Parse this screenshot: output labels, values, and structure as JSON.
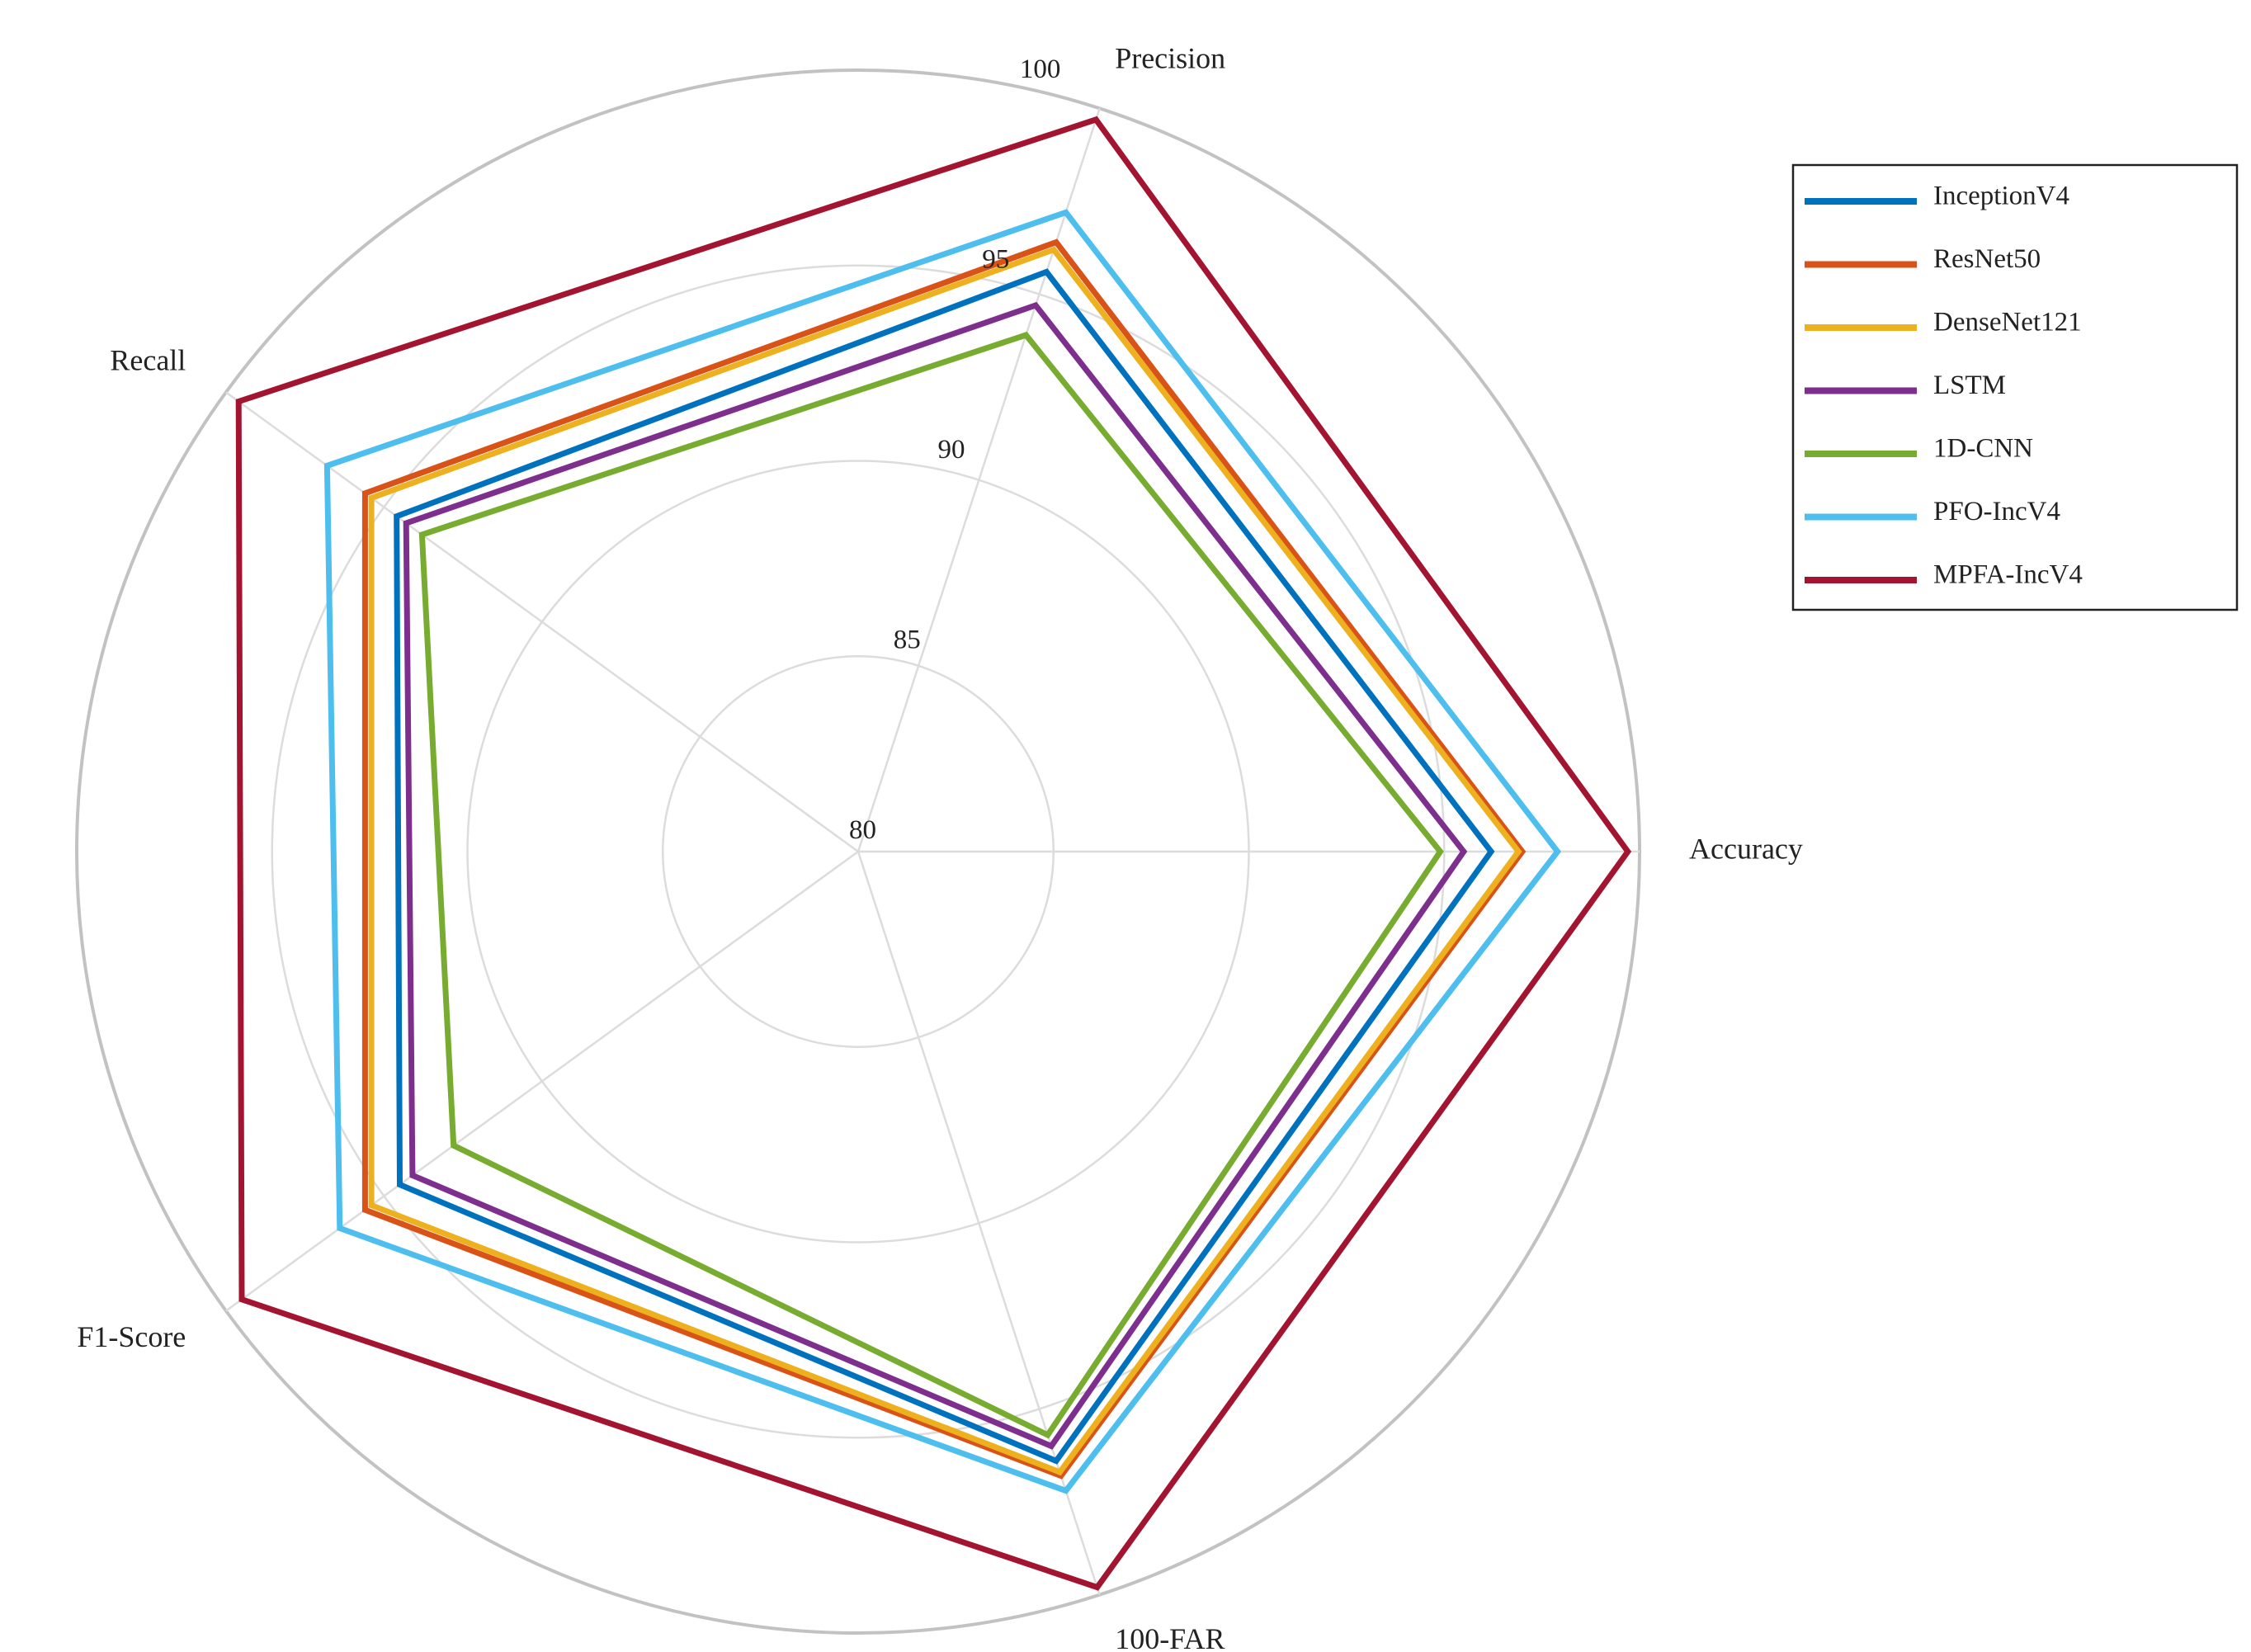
{
  "chart_data": {
    "type": "radar",
    "title": "",
    "axes": [
      "Accuracy",
      "Precision",
      "Recall",
      "F1-Score",
      "100-FAR"
    ],
    "radial_range": [
      80,
      100
    ],
    "radial_ticks": [
      "80",
      "85",
      "90",
      "95",
      "100"
    ],
    "grid": true,
    "legend_position": "top-right",
    "series": [
      {
        "name": "InceptionV4",
        "color": "#0072BD",
        "values": [
          96.2,
          95.6,
          94.6,
          94.5,
          96.4
        ]
      },
      {
        "name": "ResNet50",
        "color": "#D95319",
        "values": [
          97.0,
          96.4,
          95.6,
          95.6,
          96.8
        ]
      },
      {
        "name": "DenseNet121",
        "color": "#EDB120",
        "values": [
          96.9,
          96.2,
          95.4,
          95.4,
          96.7
        ]
      },
      {
        "name": "LSTM",
        "color": "#7E2F8E",
        "values": [
          95.5,
          94.7,
          94.3,
          94.1,
          96.0
        ]
      },
      {
        "name": "1D-CNN",
        "color": "#77AC30",
        "values": [
          94.9,
          93.9,
          93.8,
          92.8,
          95.7
        ]
      },
      {
        "name": "PFO-IncV4",
        "color": "#4DBEEE",
        "values": [
          97.9,
          97.2,
          96.8,
          96.4,
          97.2
        ]
      },
      {
        "name": "MPFA-IncV4",
        "color": "#A2142F",
        "values": [
          99.7,
          99.7,
          99.6,
          99.5,
          99.8
        ]
      }
    ]
  }
}
